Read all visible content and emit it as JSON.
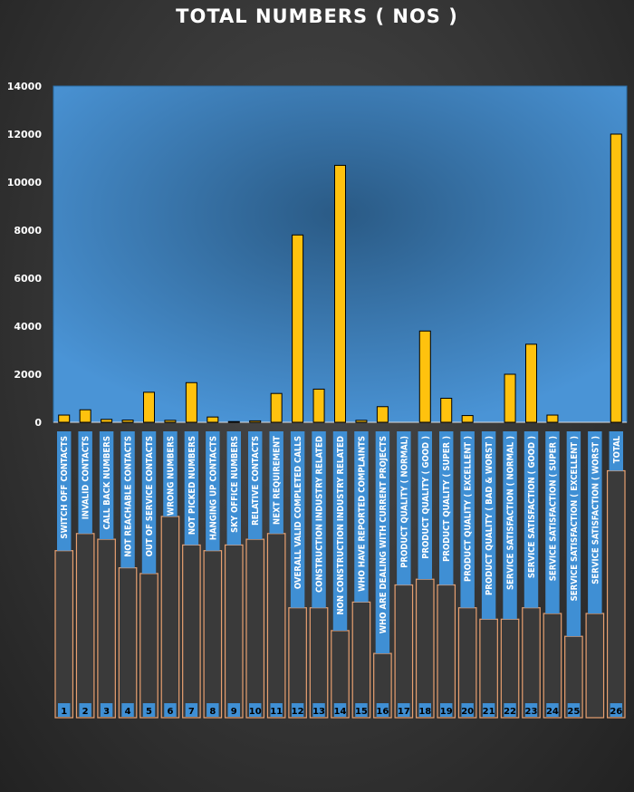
{
  "chart_data": {
    "type": "bar",
    "title": "TOTAL NUMBERS ( NOS )",
    "ylim": [
      0,
      14000
    ],
    "yticks": [
      0,
      2000,
      4000,
      6000,
      8000,
      10000,
      12000,
      14000
    ],
    "grid": false,
    "categories": [
      "SWITCH OFF CONTACTS",
      "INVALID CONTACTS",
      "CALL BACK NUMBERS",
      "NOT REACHABLE CONTACTS",
      "OUT OF SERVICE CONTACTS",
      "WRONG NUMBERS",
      "NOT PICKED NUMBERS",
      "HANGING UP CONTACTS",
      "SKY OFFICE NUMBERS",
      "RELATIVE CONTACTS",
      "NEXT REQUIREMENT",
      "OVERALL VALID COMPLETED CALLS",
      "CONSTRUCTION INDUSTRY RELATED",
      "NON CONSTRUCTION INDUSTRY RELATED",
      "WHO HAVE REPORTED COMPLAINTS",
      "WHO ARE DEALING WITH CURRENT PROJECTS",
      "PRODUCT QUALITY ( NORMAL)",
      "PRODUCT QUALITY ( GOOD )",
      "PRODUCT QUALITY ( SUPER )",
      "PRODUCT QUALITY ( EXCELLENT )",
      "PRODUCT QUALITY ( BAD & WORST )",
      "SERVICE SATISFACTION ( NORMAL )",
      "SERVICE SATISFACTION ( GOOD )",
      "SERVICE SATISFACTION ( SUPER )",
      "SERVICE SATISFACTION ( EXCELLENT )",
      "SERVICE SATISFACTION ( WORST )",
      "TOTAL"
    ],
    "indices": [
      "1",
      "2",
      "3",
      "4",
      "5",
      "6",
      "7",
      "8",
      "9",
      "10",
      "11",
      "12",
      "13",
      "14",
      "15",
      "16",
      "17",
      "18",
      "19",
      "20",
      "21",
      "22",
      "23",
      "24",
      "25",
      "",
      "26"
    ],
    "values": [
      300,
      520,
      120,
      90,
      1250,
      80,
      1650,
      220,
      30,
      60,
      1200,
      7800,
      1380,
      10700,
      80,
      650,
      0,
      3800,
      1000,
      280,
      0,
      2000,
      3250,
      300,
      0,
      0,
      12000
    ],
    "colors": {
      "bar": "#ffc20e",
      "bar_stroke": "#000000",
      "plot_bg": "#4a94d6",
      "plot_center": "#2a5a85",
      "label_box": "#3f8fd4",
      "label_panel": "#3a3a3a",
      "label_border": "#e8a070"
    }
  }
}
